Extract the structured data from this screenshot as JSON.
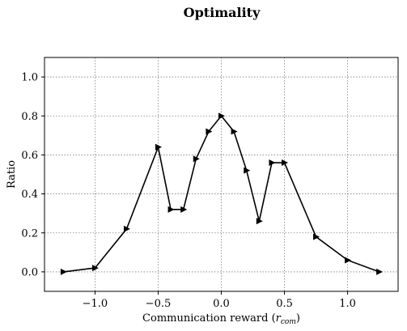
{
  "chart_data": {
    "type": "line",
    "title": "Optimality",
    "xlabel_main": "Communication reward (",
    "xlabel_var": "r",
    "xlabel_sub": "com",
    "xlabel_close": ")",
    "ylabel": "Ratio",
    "xlim": [
      -1.4,
      1.4
    ],
    "ylim": [
      -0.1,
      1.1
    ],
    "xticks": [
      -1.0,
      -0.5,
      0.0,
      0.5,
      1.0
    ],
    "xtick_labels": [
      "−1.0",
      "−0.5",
      "0.0",
      "0.5",
      "1.0"
    ],
    "yticks": [
      0.0,
      0.2,
      0.4,
      0.6,
      0.8,
      1.0
    ],
    "ytick_labels": [
      "0.0",
      "0.2",
      "0.4",
      "0.6",
      "0.8",
      "1.0"
    ],
    "grid": true,
    "marker": "right-triangle",
    "line_color": "#000000",
    "series": [
      {
        "x": [
          -1.25,
          -1.0,
          -0.75,
          -0.5,
          -0.4,
          -0.3,
          -0.2,
          -0.1,
          0.0,
          0.1,
          0.2,
          0.3,
          0.4,
          0.5,
          0.75,
          1.0,
          1.25
        ],
        "y": [
          0.0,
          0.02,
          0.22,
          0.64,
          0.32,
          0.32,
          0.58,
          0.72,
          0.8,
          0.72,
          0.52,
          0.26,
          0.56,
          0.56,
          0.18,
          0.06,
          0.0
        ]
      }
    ]
  }
}
